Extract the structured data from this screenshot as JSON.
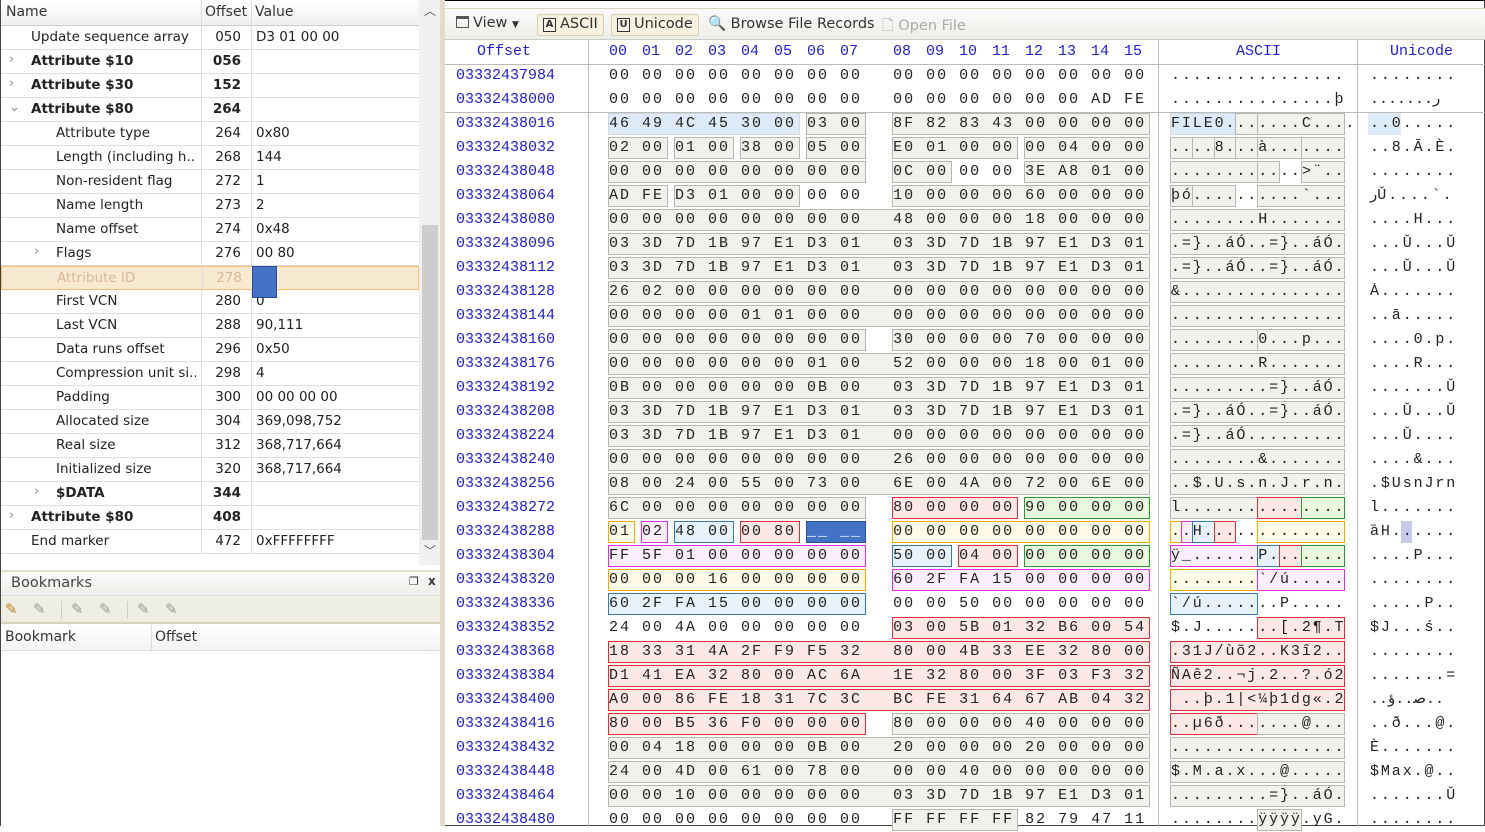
{
  "tree": {
    "columns": [
      "Name",
      "Offset",
      "Value"
    ],
    "rows": [
      {
        "name": "Update sequence array",
        "offset": "050",
        "value": "D3 01 00 00",
        "level": 1,
        "expander": "",
        "bold": false
      },
      {
        "name": "Attribute $10",
        "offset": "056",
        "value": "",
        "level": 1,
        "expander": "collapsed",
        "bold": true
      },
      {
        "name": "Attribute $30",
        "offset": "152",
        "value": "",
        "level": 1,
        "expander": "collapsed",
        "bold": true
      },
      {
        "name": "Attribute $80",
        "offset": "264",
        "value": "",
        "level": 1,
        "expander": "expanded",
        "bold": true
      },
      {
        "name": "Attribute type",
        "offset": "264",
        "value": "0x80",
        "level": 2,
        "expander": "",
        "bold": false
      },
      {
        "name": "Length (including h...",
        "offset": "268",
        "value": "144",
        "level": 2,
        "expander": "",
        "bold": false
      },
      {
        "name": "Non-resident flag",
        "offset": "272",
        "value": "1",
        "level": 2,
        "expander": "",
        "bold": false
      },
      {
        "name": "Name length",
        "offset": "273",
        "value": "2",
        "level": 2,
        "expander": "",
        "bold": false
      },
      {
        "name": "Name offset",
        "offset": "274",
        "value": "0x48",
        "level": 2,
        "expander": "",
        "bold": false
      },
      {
        "name": "Flags",
        "offset": "276",
        "value": "00 80",
        "level": 2,
        "expander": "collapsed",
        "bold": false
      },
      {
        "name": "Attribute ID",
        "offset": "278",
        "value": "",
        "level": 2,
        "expander": "",
        "bold": false,
        "selected": true
      },
      {
        "name": "First VCN",
        "offset": "280",
        "value": "0",
        "level": 2,
        "expander": "",
        "bold": false
      },
      {
        "name": "Last VCN",
        "offset": "288",
        "value": "90,111",
        "level": 2,
        "expander": "",
        "bold": false
      },
      {
        "name": "Data runs offset",
        "offset": "296",
        "value": "0x50",
        "level": 2,
        "expander": "",
        "bold": false
      },
      {
        "name": "Compression unit si...",
        "offset": "298",
        "value": "4",
        "level": 2,
        "expander": "",
        "bold": false
      },
      {
        "name": "Padding",
        "offset": "300",
        "value": "00 00 00 00",
        "level": 2,
        "expander": "",
        "bold": false
      },
      {
        "name": "Allocated size",
        "offset": "304",
        "value": "369,098,752",
        "level": 2,
        "expander": "",
        "bold": false
      },
      {
        "name": "Real size",
        "offset": "312",
        "value": "368,717,664",
        "level": 2,
        "expander": "",
        "bold": false
      },
      {
        "name": "Initialized size",
        "offset": "320",
        "value": "368,717,664",
        "level": 2,
        "expander": "",
        "bold": false
      },
      {
        "name": "$DATA",
        "offset": "344",
        "value": "",
        "level": 2,
        "expander": "collapsed",
        "bold": true
      },
      {
        "name": "Attribute $80",
        "offset": "408",
        "value": "",
        "level": 1,
        "expander": "collapsed",
        "bold": true
      },
      {
        "name": "End marker",
        "offset": "472",
        "value": "0xFFFFFFFF",
        "level": 1,
        "expander": "",
        "bold": false
      }
    ]
  },
  "bookmarks": {
    "title": "Bookmarks",
    "columns": [
      "Bookmark",
      "Offset"
    ],
    "tools": [
      "add-bookmark",
      "edit-bookmark",
      "prev-bookmark",
      "next-bookmark",
      "delete-bookmark",
      "clear-bookmarks"
    ]
  },
  "toolbar": {
    "view": "View",
    "ascii": "ASCII",
    "unicode": "Unicode",
    "browse": "Browse File Records",
    "open": "Open File"
  },
  "hex": {
    "offset_header": "Offset",
    "ascii_header": "ASCII",
    "unicode_header": "Unicode",
    "col_headers": [
      "00",
      "01",
      "02",
      "03",
      "04",
      "05",
      "06",
      "07",
      "08",
      "09",
      "10",
      "11",
      "12",
      "13",
      "14",
      "15"
    ],
    "colors": {
      "gray": "#f2f2ec",
      "gray_border": "#b5b5b5",
      "blue": "#e8f2fb",
      "blue_border": "#3a78b0",
      "red": "#fde8e8",
      "red_border": "#e03030",
      "green": "#eaf8e0",
      "green_border": "#2a9a2a",
      "orange": "#fffbe6",
      "orange_border": "#f5a800",
      "magenta": "#fdeefd",
      "magenta_border": "#e030e0",
      "select": "#4472c4",
      "highlight": "#ddebf8"
    },
    "rows": [
      {
        "o": "03332437984",
        "h": "00 00 00 00 00 00 00 00 00 00 00 00 00 00 00 00",
        "a": "................",
        "u": "........"
      },
      {
        "o": "03332438000",
        "h": "00 00 00 00 00 00 00 00 00 00 00 00 00 00 AD FE",
        "a": "...............þ",
        "u": ".......ﺭ"
      },
      {
        "o": "03332438016",
        "h": "46 49 4C 45 30 00 03 00 8F 82 83 43 00 00 00 00",
        "a": "FILE0.......C....",
        "u": "..0....."
      },
      {
        "o": "03332438032",
        "h": "02 00 01 00 38 00 05 00 E0 01 00 00 00 04 00 00",
        "a": "....8...à.......",
        "u": "..8.Ā.È."
      },
      {
        "o": "03332438048",
        "h": "00 00 00 00 00 00 00 00 0C 00 00 00 3E A8 01 00",
        "a": "............>¨..",
        "u": "........"
      },
      {
        "o": "03332438064",
        "h": "AD FE D3 01 00 00 00 00 10 00 00 00 60 00 00 00",
        "a": "þó..........`...",
        "u": "ﺭǓ....`."
      },
      {
        "o": "03332438080",
        "h": "00 00 00 00 00 00 00 00 48 00 00 00 18 00 00 00",
        "a": "........H.......",
        "u": "....H..."
      },
      {
        "o": "03332438096",
        "h": "03 3D 7D 1B 97 E1 D3 01 03 3D 7D 1B 97 E1 D3 01",
        "a": ".=}..áÓ..=}..áÓ.",
        "u": "...Ǔ...Ǔ"
      },
      {
        "o": "03332438112",
        "h": "03 3D 7D 1B 97 E1 D3 01 03 3D 7D 1B 97 E1 D3 01",
        "a": ".=}..áÓ..=}..áÓ.",
        "u": "...Ǔ...Ǔ"
      },
      {
        "o": "03332438128",
        "h": "26 02 00 00 00 00 00 00 00 00 00 00 00 00 00 00",
        "a": "&...............",
        "u": "Ȧ......."
      },
      {
        "o": "03332438144",
        "h": "00 00 00 00 01 01 00 00 00 00 00 00 00 00 00 00",
        "a": "................",
        "u": "..ā....."
      },
      {
        "o": "03332438160",
        "h": "00 00 00 00 00 00 00 00 30 00 00 00 70 00 00 00",
        "a": "........0...p...",
        "u": "....0.p."
      },
      {
        "o": "03332438176",
        "h": "00 00 00 00 00 00 01 00 52 00 00 00 18 00 01 00",
        "a": "........R.......",
        "u": "....R..."
      },
      {
        "o": "03332438192",
        "h": "0B 00 00 00 00 00 0B 00 03 3D 7D 1B 97 E1 D3 01",
        "a": ".........=}..áÓ.",
        "u": ".......Ǔ"
      },
      {
        "o": "03332438208",
        "h": "03 3D 7D 1B 97 E1 D3 01 03 3D 7D 1B 97 E1 D3 01",
        "a": ".=}..áÓ..=}..áÓ.",
        "u": "...Ǔ...Ǔ"
      },
      {
        "o": "03332438224",
        "h": "03 3D 7D 1B 97 E1 D3 01 00 00 00 00 00 00 00 00",
        "a": ".=}..áÓ.........",
        "u": "...Ǔ...."
      },
      {
        "o": "03332438240",
        "h": "00 00 00 00 00 00 00 00 26 00 00 00 00 00 00 00",
        "a": "........&.......",
        "u": "....&..."
      },
      {
        "o": "03332438256",
        "h": "08 00 24 00 55 00 73 00 6E 00 4A 00 72 00 6E 00",
        "a": "..$.U.s.n.J.r.n.",
        "u": ".$UsnJrn"
      },
      {
        "o": "03332438272",
        "h": "6C 00 00 00 00 00 00 00 80 00 00 00 90 00 00 00",
        "a": "l...............",
        "u": "l......."
      },
      {
        "o": "03332438288",
        "h": "01 02 48 00 00 80 __ __ 00 00 00 00 00 00 00 00",
        "a": "..H.............",
        "u": "ȁH......"
      },
      {
        "o": "03332438304",
        "h": "FF 5F 01 00 00 00 00 00 50 00 04 00 00 00 00 00",
        "a": "ÿ_......P.......",
        "u": "....P..."
      },
      {
        "o": "03332438320",
        "h": "00 00 00 16 00 00 00 00 60 2F FA 15 00 00 00 00",
        "a": "........`/ú.....",
        "u": "........"
      },
      {
        "o": "03332438336",
        "h": "60 2F FA 15 00 00 00 00 00 00 50 00 00 00 00 00",
        "a": "`/ú.......P.....",
        "u": ".....P.."
      },
      {
        "o": "03332438352",
        "h": "24 00 4A 00 00 00 00 00 03 00 5B 01 32 B6 00 54",
        "a": "$.J.......[.2¶.T",
        "u": "$J...ś.."
      },
      {
        "o": "03332438368",
        "h": "18 33 31 4A 2F F9 F5 32 80 00 4B 33 EE 32 80 00",
        "a": ".31J/ùõ2..K3î2..",
        "u": "........"
      },
      {
        "o": "03332438384",
        "h": "D1 41 EA 32 80 00 AC 6A 1E 32 80 00 3F 03 F3 32",
        "a": "ÑAê2..¬j.2..?.ó2",
        "u": ".......="
      },
      {
        "o": "03332438400",
        "h": "A0 00 86 FE 18 31 7C 3C BC FE 31 64 67 AB 04 32",
        "a": " ..þ.1|<¼þ1dg«.2",
        "u": "..ﺻ..ؤ.."
      },
      {
        "o": "03332438416",
        "h": "80 00 B5 36 F0 00 00 00 80 00 00 00 40 00 00 00",
        "a": "..µ6ð.......@...",
        "u": "..ð...@."
      },
      {
        "o": "03332438432",
        "h": "00 04 18 00 00 00 0B 00 20 00 00 00 20 00 00 00",
        "a": "................",
        "u": "È......."
      },
      {
        "o": "03332438448",
        "h": "24 00 4D 00 61 00 78 00 00 00 40 00 00 00 00 00",
        "a": "$.M.a.x...@.....",
        "u": "$Max.@.."
      },
      {
        "o": "03332438464",
        "h": "00 00 10 00 00 00 00 00 03 3D 7D 1B 97 E1 D3 01",
        "a": ".........=}..áÓ.",
        "u": ".......Ǔ"
      },
      {
        "o": "03332438480",
        "h": "00 00 00 00 00 00 00 00 FF FF FF FF 82 79 47 11",
        "a": "........ÿÿÿÿ.yG.",
        "u": "........"
      }
    ],
    "regions": [
      [
        2,
        0,
        5,
        "highlight"
      ],
      [
        2,
        6,
        7,
        "gray"
      ],
      [
        2,
        8,
        15,
        "gray"
      ],
      [
        3,
        0,
        1,
        "gray"
      ],
      [
        3,
        2,
        3,
        "gray"
      ],
      [
        3,
        4,
        5,
        "gray"
      ],
      [
        3,
        6,
        7,
        "gray"
      ],
      [
        3,
        8,
        11,
        "gray"
      ],
      [
        3,
        12,
        15,
        "gray"
      ],
      [
        4,
        0,
        7,
        "gray"
      ],
      [
        4,
        8,
        9,
        "gray"
      ],
      [
        4,
        12,
        15,
        "gray"
      ],
      [
        5,
        0,
        1,
        "gray"
      ],
      [
        5,
        2,
        5,
        "gray"
      ],
      [
        5,
        8,
        15,
        "gray"
      ],
      [
        6,
        0,
        15,
        "gray"
      ],
      [
        7,
        0,
        15,
        "gray"
      ],
      [
        8,
        0,
        15,
        "gray"
      ],
      [
        9,
        0,
        15,
        "gray"
      ],
      [
        10,
        0,
        15,
        "gray"
      ],
      [
        11,
        0,
        7,
        "gray"
      ],
      [
        11,
        8,
        15,
        "gray"
      ],
      [
        12,
        0,
        15,
        "gray"
      ],
      [
        13,
        0,
        15,
        "gray"
      ],
      [
        14,
        0,
        15,
        "gray"
      ],
      [
        15,
        0,
        15,
        "gray"
      ],
      [
        16,
        0,
        15,
        "gray"
      ],
      [
        17,
        0,
        15,
        "gray"
      ],
      [
        18,
        0,
        7,
        "gray"
      ],
      [
        18,
        8,
        11,
        "red"
      ],
      [
        18,
        12,
        15,
        "green"
      ],
      [
        19,
        0,
        0,
        "orange"
      ],
      [
        19,
        1,
        1,
        "magenta"
      ],
      [
        19,
        2,
        3,
        "blue"
      ],
      [
        19,
        4,
        5,
        "red"
      ],
      [
        19,
        6,
        7,
        "select"
      ],
      [
        19,
        8,
        15,
        "orange"
      ],
      [
        20,
        0,
        7,
        "magenta"
      ],
      [
        20,
        8,
        9,
        "blue"
      ],
      [
        20,
        10,
        11,
        "red"
      ],
      [
        20,
        12,
        15,
        "green"
      ],
      [
        21,
        0,
        7,
        "orange"
      ],
      [
        21,
        8,
        15,
        "magenta"
      ],
      [
        22,
        0,
        7,
        "blue"
      ],
      [
        23,
        8,
        15,
        "red"
      ],
      [
        24,
        0,
        15,
        "red"
      ],
      [
        25,
        0,
        15,
        "red"
      ],
      [
        26,
        0,
        15,
        "red"
      ],
      [
        27,
        0,
        7,
        "red"
      ],
      [
        27,
        8,
        15,
        "gray"
      ],
      [
        28,
        0,
        15,
        "gray"
      ],
      [
        29,
        0,
        15,
        "gray"
      ],
      [
        30,
        0,
        15,
        "gray"
      ],
      [
        31,
        8,
        11,
        "gray"
      ]
    ]
  }
}
